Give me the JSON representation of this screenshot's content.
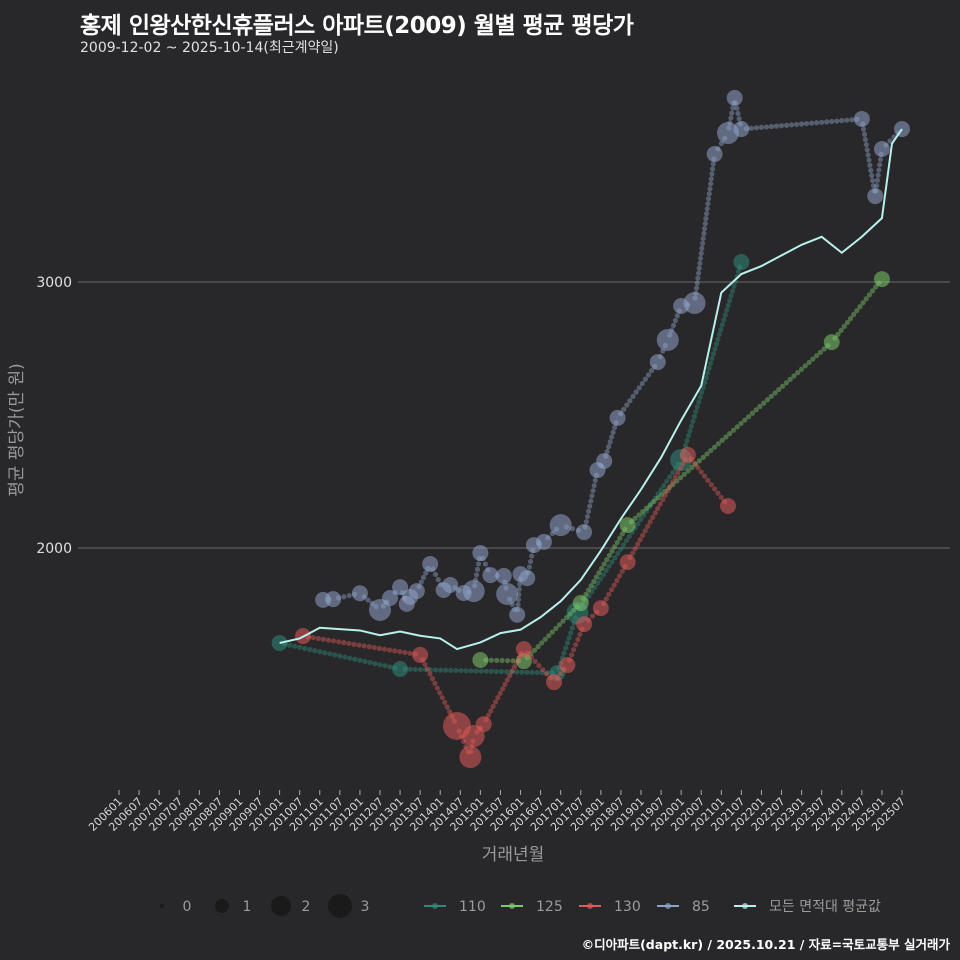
{
  "header": {
    "title": "홍제 인왕산한신휴플러스 아파트(2009) 월별 평균 평당가",
    "subtitle": "2009-12-02 ~ 2025-10-14(최근계약일)"
  },
  "footer": {
    "credit": "©디아파트(dapt.kr) / 2025.10.21 / 자료=국토교통부 실거래가"
  },
  "colors": {
    "background": "#282729",
    "s110": "#2e8b7a",
    "s125": "#7cc96a",
    "s130": "#e05a5a",
    "s85": "#8fa3c8",
    "avg": "#b8f0ec",
    "grid": "#6a6a6a"
  },
  "chart_data": {
    "type": "scatter",
    "title": "홍제 인왕산한신휴플러스 아파트(2009) 월별 평균 평당가",
    "subtitle": "2009-12-02 ~ 2025-10-14(최근계약일)",
    "xlabel": "거래년월",
    "ylabel": "평균 평당가(만 원)",
    "x_tick_labels": [
      "200601",
      "200607",
      "200701",
      "200707",
      "200801",
      "200807",
      "200901",
      "200907",
      "201001",
      "201007",
      "201101",
      "201107",
      "201201",
      "201207",
      "201301",
      "201307",
      "201401",
      "201407",
      "201501",
      "201507",
      "201601",
      "201607",
      "201701",
      "201707",
      "201801",
      "201807",
      "201901",
      "201907",
      "202001",
      "202007",
      "202101",
      "202107",
      "202201",
      "202207",
      "202301",
      "202307",
      "202401",
      "202407",
      "202501",
      "202507"
    ],
    "y_ticks": [
      2000,
      3000
    ],
    "ylim": [
      1100,
      3800
    ],
    "grid": "horizontal",
    "legend_position": "bottom",
    "size_legend": {
      "title": "",
      "values": [
        0,
        1,
        2,
        3
      ]
    },
    "series": [
      {
        "name": "110",
        "color": "#2e8b7a",
        "points": [
          {
            "x": "201001",
            "y": 1643,
            "size": 1
          },
          {
            "x": "201301",
            "y": 1545,
            "size": 1
          },
          {
            "x": "201612",
            "y": 1530,
            "size": 1
          },
          {
            "x": "201706",
            "y": 1756,
            "size": 2
          },
          {
            "x": "202001",
            "y": 2331,
            "size": 2
          },
          {
            "x": "202107",
            "y": 3075,
            "size": 1
          }
        ]
      },
      {
        "name": "125",
        "color": "#7cc96a",
        "points": [
          {
            "x": "201501",
            "y": 1579,
            "size": 1
          },
          {
            "x": "201602",
            "y": 1575,
            "size": 1
          },
          {
            "x": "201707",
            "y": 1793,
            "size": 1
          },
          {
            "x": "201809",
            "y": 2086,
            "size": 1
          },
          {
            "x": "202310",
            "y": 2774,
            "size": 1
          },
          {
            "x": "202501",
            "y": 3011,
            "size": 1
          }
        ]
      },
      {
        "name": "130",
        "color": "#e05a5a",
        "points": [
          {
            "x": "201008",
            "y": 1669,
            "size": 1
          },
          {
            "x": "201307",
            "y": 1598,
            "size": 1
          },
          {
            "x": "201406",
            "y": 1331,
            "size": 3
          },
          {
            "x": "201410",
            "y": 1214,
            "size": 2
          },
          {
            "x": "201411",
            "y": 1293,
            "size": 2
          },
          {
            "x": "201502",
            "y": 1338,
            "size": 1
          },
          {
            "x": "201602",
            "y": 1620,
            "size": 1
          },
          {
            "x": "201611",
            "y": 1496,
            "size": 1
          },
          {
            "x": "201703",
            "y": 1560,
            "size": 1
          },
          {
            "x": "201708",
            "y": 1714,
            "size": 1
          },
          {
            "x": "201801",
            "y": 1774,
            "size": 1
          },
          {
            "x": "201809",
            "y": 1947,
            "size": 1
          },
          {
            "x": "202003",
            "y": 2350,
            "size": 1
          },
          {
            "x": "202103",
            "y": 2158,
            "size": 1
          }
        ]
      },
      {
        "name": "85",
        "color": "#8fa3c8",
        "points": [
          {
            "x": "201102",
            "y": 1805,
            "size": 1
          },
          {
            "x": "201105",
            "y": 1808,
            "size": 1
          },
          {
            "x": "201201",
            "y": 1830,
            "size": 1
          },
          {
            "x": "201207",
            "y": 1767,
            "size": 2
          },
          {
            "x": "201210",
            "y": 1812,
            "size": 1
          },
          {
            "x": "201301",
            "y": 1853,
            "size": 1
          },
          {
            "x": "201303",
            "y": 1790,
            "size": 1
          },
          {
            "x": "201304",
            "y": 1816,
            "size": 1
          },
          {
            "x": "201306",
            "y": 1838,
            "size": 1
          },
          {
            "x": "201310",
            "y": 1940,
            "size": 1
          },
          {
            "x": "201402",
            "y": 1842,
            "size": 1
          },
          {
            "x": "201404",
            "y": 1861,
            "size": 1
          },
          {
            "x": "201408",
            "y": 1831,
            "size": 1
          },
          {
            "x": "201411",
            "y": 1838,
            "size": 2
          },
          {
            "x": "201501",
            "y": 1981,
            "size": 1
          },
          {
            "x": "201504",
            "y": 1898,
            "size": 1
          },
          {
            "x": "201508",
            "y": 1895,
            "size": 1
          },
          {
            "x": "201509",
            "y": 1827,
            "size": 2
          },
          {
            "x": "201512",
            "y": 1749,
            "size": 1
          },
          {
            "x": "201601",
            "y": 1902,
            "size": 1
          },
          {
            "x": "201603",
            "y": 1887,
            "size": 1
          },
          {
            "x": "201605",
            "y": 2011,
            "size": 1
          },
          {
            "x": "201608",
            "y": 2023,
            "size": 1
          },
          {
            "x": "201701",
            "y": 2086,
            "size": 2
          },
          {
            "x": "201708",
            "y": 2060,
            "size": 1
          },
          {
            "x": "201712",
            "y": 2293,
            "size": 1
          },
          {
            "x": "201802",
            "y": 2327,
            "size": 1
          },
          {
            "x": "201806",
            "y": 2489,
            "size": 1
          },
          {
            "x": "201906",
            "y": 2699,
            "size": 1
          },
          {
            "x": "201909",
            "y": 2782,
            "size": 2
          },
          {
            "x": "202001",
            "y": 2910,
            "size": 1
          },
          {
            "x": "202005",
            "y": 2921,
            "size": 2
          },
          {
            "x": "202011",
            "y": 3481,
            "size": 1
          },
          {
            "x": "202103",
            "y": 3560,
            "size": 2
          },
          {
            "x": "202105",
            "y": 3692,
            "size": 1
          },
          {
            "x": "202107",
            "y": 3575,
            "size": 1
          },
          {
            "x": "202407",
            "y": 3613,
            "size": 1
          },
          {
            "x": "202411",
            "y": 3323,
            "size": 1
          },
          {
            "x": "202501",
            "y": 3500,
            "size": 1
          },
          {
            "x": "202507",
            "y": 3575,
            "size": 1
          }
        ]
      },
      {
        "name": "모든 면적대 평균값",
        "color": "#b8f0ec",
        "type": "line",
        "points": [
          {
            "x": "201001",
            "y": 1643
          },
          {
            "x": "201007",
            "y": 1660
          },
          {
            "x": "201101",
            "y": 1700
          },
          {
            "x": "201201",
            "y": 1690
          },
          {
            "x": "201207",
            "y": 1672
          },
          {
            "x": "201301",
            "y": 1686
          },
          {
            "x": "201307",
            "y": 1670
          },
          {
            "x": "201401",
            "y": 1660
          },
          {
            "x": "201406",
            "y": 1620
          },
          {
            "x": "201501",
            "y": 1645
          },
          {
            "x": "201507",
            "y": 1680
          },
          {
            "x": "201601",
            "y": 1693
          },
          {
            "x": "201607",
            "y": 1740
          },
          {
            "x": "201701",
            "y": 1800
          },
          {
            "x": "201707",
            "y": 1880
          },
          {
            "x": "201801",
            "y": 1990
          },
          {
            "x": "201807",
            "y": 2110
          },
          {
            "x": "201901",
            "y": 2220
          },
          {
            "x": "201907",
            "y": 2340
          },
          {
            "x": "202001",
            "y": 2480
          },
          {
            "x": "202007",
            "y": 2610
          },
          {
            "x": "202101",
            "y": 2960
          },
          {
            "x": "202107",
            "y": 3030
          },
          {
            "x": "202201",
            "y": 3060
          },
          {
            "x": "202207",
            "y": 3100
          },
          {
            "x": "202301",
            "y": 3140
          },
          {
            "x": "202307",
            "y": 3170
          },
          {
            "x": "202401",
            "y": 3110
          },
          {
            "x": "202407",
            "y": 3170
          },
          {
            "x": "202501",
            "y": 3240
          },
          {
            "x": "202504",
            "y": 3520
          },
          {
            "x": "202507",
            "y": 3575
          }
        ]
      }
    ]
  },
  "legend": {
    "size_items": [
      {
        "label": "0"
      },
      {
        "label": "1"
      },
      {
        "label": "2"
      },
      {
        "label": "3"
      }
    ],
    "color_items": [
      {
        "label": "110",
        "color": "#2e8b7a"
      },
      {
        "label": "125",
        "color": "#7cc96a"
      },
      {
        "label": "130",
        "color": "#e05a5a"
      },
      {
        "label": "85",
        "color": "#8fa3c8"
      },
      {
        "label": "모든 면적대 평균값",
        "color": "#b8f0ec"
      }
    ]
  },
  "axes": {
    "x_title": "거래년월",
    "y_title": "평균 평당가(만 원)",
    "y_tick_labels": [
      "3000",
      "2000"
    ]
  }
}
